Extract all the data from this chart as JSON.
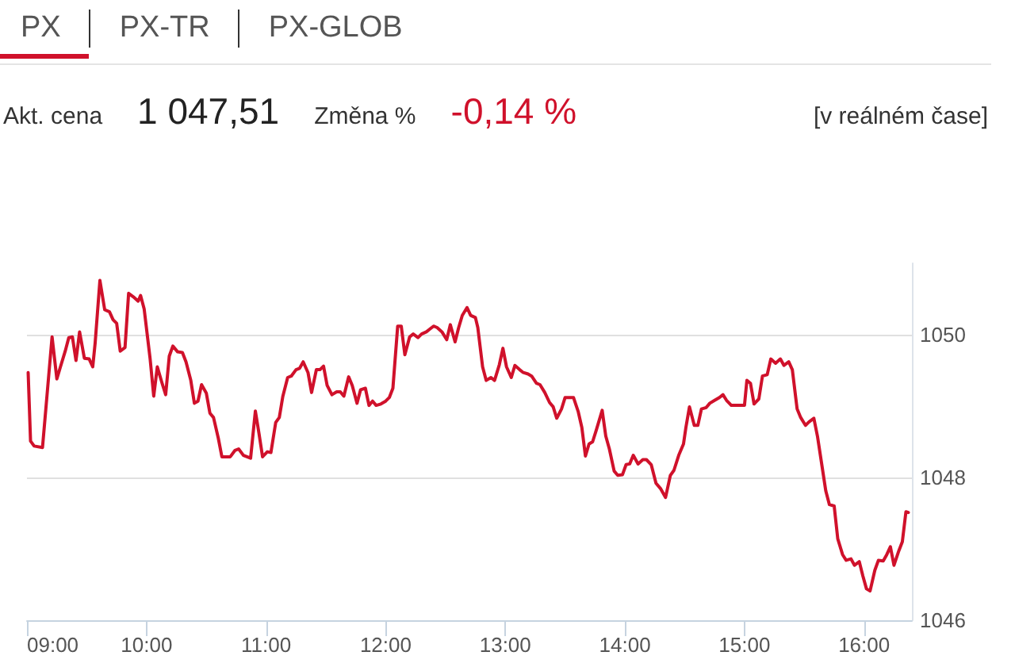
{
  "chart_data": {
    "type": "line",
    "title": "PX",
    "annotations": [
      "PX-TR",
      "PX-GLOB",
      "Akt. cena",
      "1 047,51",
      "Změna %",
      "-0,14 %",
      "[v reálném čase]"
    ],
    "x": [
      9.01,
      9.03,
      9.06,
      9.13,
      9.21,
      9.25,
      9.28,
      9.32,
      9.35,
      9.38,
      9.41,
      9.44,
      9.48,
      9.52,
      9.55,
      9.57,
      9.61,
      9.65,
      9.69,
      9.72,
      9.75,
      9.78,
      9.82,
      9.85,
      9.89,
      9.93,
      9.95,
      9.98,
      10.03,
      10.06,
      10.09,
      10.13,
      10.16,
      10.19,
      10.22,
      10.26,
      10.3,
      10.33,
      10.37,
      10.4,
      10.43,
      10.46,
      10.5,
      10.53,
      10.56,
      10.6,
      10.63,
      10.7,
      10.74,
      10.77,
      10.81,
      10.87,
      10.91,
      10.94,
      10.97,
      11.01,
      11.04,
      11.08,
      11.11,
      11.14,
      11.18,
      11.21,
      11.25,
      11.28,
      11.31,
      11.35,
      11.38,
      11.42,
      11.45,
      11.48,
      11.51,
      11.55,
      11.59,
      11.62,
      11.65,
      11.69,
      11.72,
      11.76,
      11.79,
      11.83,
      11.86,
      11.89,
      11.92,
      11.96,
      12.0,
      12.03,
      12.06,
      12.1,
      12.13,
      12.16,
      12.2,
      12.23,
      12.27,
      12.3,
      12.34,
      12.37,
      12.4,
      12.43,
      12.47,
      12.51,
      12.54,
      12.58,
      12.61,
      12.64,
      12.68,
      12.71,
      12.75,
      12.77,
      12.81,
      12.84,
      12.88,
      12.91,
      12.95,
      12.98,
      13.01,
      13.05,
      13.08,
      13.12,
      13.15,
      13.19,
      13.22,
      13.26,
      13.29,
      13.33,
      13.37,
      13.4,
      13.43,
      13.47,
      13.5,
      13.54,
      13.57,
      13.61,
      13.64,
      13.67,
      13.7,
      13.73,
      13.76,
      13.81,
      13.84,
      13.87,
      13.91,
      13.94,
      13.98,
      14.01,
      14.04,
      14.07,
      14.11,
      14.15,
      14.18,
      14.22,
      14.26,
      14.3,
      14.34,
      14.38,
      14.41,
      14.45,
      14.49,
      14.51,
      14.54,
      14.58,
      14.61,
      14.64,
      14.68,
      14.71,
      14.75,
      14.79,
      14.82,
      14.85,
      14.89,
      14.93,
      14.96,
      15.0,
      15.02,
      15.05,
      15.08,
      15.12,
      15.15,
      15.19,
      15.22,
      15.26,
      15.3,
      15.33,
      15.37,
      15.4,
      15.44,
      15.47,
      15.51,
      15.54,
      15.58,
      15.61,
      15.65,
      15.68,
      15.71,
      15.75,
      15.78,
      15.82,
      15.85,
      15.89,
      15.92,
      15.96,
      15.99,
      16.02,
      16.05,
      16.09,
      16.12,
      16.16,
      16.19,
      16.22,
      16.25,
      16.29,
      16.32,
      16.35,
      16.37
    ],
    "values": [
      1049.47,
      1048.51,
      1048.44,
      1048.42,
      1049.97,
      1049.38,
      1049.55,
      1049.77,
      1049.96,
      1049.97,
      1049.64,
      1050.04,
      1049.67,
      1049.66,
      1049.55,
      1049.88,
      1050.76,
      1050.35,
      1050.32,
      1050.21,
      1050.16,
      1049.77,
      1049.82,
      1050.58,
      1050.53,
      1050.47,
      1050.55,
      1050.36,
      1049.66,
      1049.14,
      1049.55,
      1049.32,
      1049.16,
      1049.7,
      1049.84,
      1049.76,
      1049.75,
      1049.62,
      1049.36,
      1049.04,
      1049.07,
      1049.3,
      1049.18,
      1048.9,
      1048.84,
      1048.55,
      1048.29,
      1048.29,
      1048.38,
      1048.4,
      1048.31,
      1048.27,
      1048.93,
      1048.62,
      1048.29,
      1048.36,
      1048.35,
      1048.77,
      1048.84,
      1049.14,
      1049.4,
      1049.42,
      1049.51,
      1049.53,
      1049.62,
      1049.47,
      1049.19,
      1049.51,
      1049.51,
      1049.56,
      1049.29,
      1049.16,
      1049.2,
      1049.2,
      1049.14,
      1049.41,
      1049.29,
      1049.04,
      1049.23,
      1049.25,
      1049.01,
      1049.07,
      1049.01,
      1049.03,
      1049.07,
      1049.12,
      1049.25,
      1050.12,
      1050.12,
      1049.72,
      1049.97,
      1050.01,
      1049.96,
      1050.01,
      1050.04,
      1050.08,
      1050.12,
      1050.1,
      1050.04,
      1049.93,
      1050.14,
      1049.9,
      1050.1,
      1050.27,
      1050.38,
      1050.27,
      1050.24,
      1050.1,
      1049.55,
      1049.36,
      1049.4,
      1049.36,
      1049.58,
      1049.81,
      1049.55,
      1049.4,
      1049.57,
      1049.51,
      1049.47,
      1049.45,
      1049.42,
      1049.32,
      1049.3,
      1049.19,
      1049.05,
      1048.99,
      1048.83,
      1048.96,
      1049.12,
      1049.12,
      1049.12,
      1048.92,
      1048.7,
      1048.3,
      1048.47,
      1048.5,
      1048.66,
      1048.94,
      1048.58,
      1048.4,
      1048.09,
      1048.03,
      1048.04,
      1048.18,
      1048.19,
      1048.31,
      1048.19,
      1048.25,
      1048.25,
      1048.18,
      1047.92,
      1047.84,
      1047.72,
      1048.03,
      1048.1,
      1048.31,
      1048.47,
      1048.7,
      1048.99,
      1048.73,
      1048.73,
      1048.96,
      1048.98,
      1049.04,
      1049.08,
      1049.12,
      1049.16,
      1049.08,
      1049.01,
      1049.01,
      1049.01,
      1049.01,
      1049.36,
      1049.32,
      1049.03,
      1049.1,
      1049.42,
      1049.44,
      1049.66,
      1049.6,
      1049.66,
      1049.57,
      1049.62,
      1049.51,
      1048.96,
      1048.84,
      1048.73,
      1048.78,
      1048.83,
      1048.58,
      1048.14,
      1047.81,
      1047.62,
      1047.6,
      1047.14,
      1046.92,
      1046.84,
      1046.86,
      1046.77,
      1046.82,
      1046.62,
      1046.44,
      1046.41,
      1046.7,
      1046.84,
      1046.83,
      1046.92,
      1047.03,
      1046.77,
      1046.97,
      1047.1,
      1047.52,
      1047.51
    ],
    "color": "#d0112b",
    "xlim": [
      9,
      16.4
    ],
    "xticks": [
      {
        "value": 9,
        "label": "09:00"
      },
      {
        "value": 10,
        "label": "10:00"
      },
      {
        "value": 11,
        "label": "11:00"
      },
      {
        "value": 12,
        "label": "12:00"
      },
      {
        "value": 13,
        "label": "13:00"
      },
      {
        "value": 14,
        "label": "14:00"
      },
      {
        "value": 15,
        "label": "15:00"
      },
      {
        "value": 16,
        "label": "16:00"
      }
    ],
    "ylim": [
      1046,
      1051
    ],
    "yticks": [
      1046,
      1048,
      1050
    ],
    "grid": "y",
    "marker": "none",
    "line_style": "solid"
  }
}
